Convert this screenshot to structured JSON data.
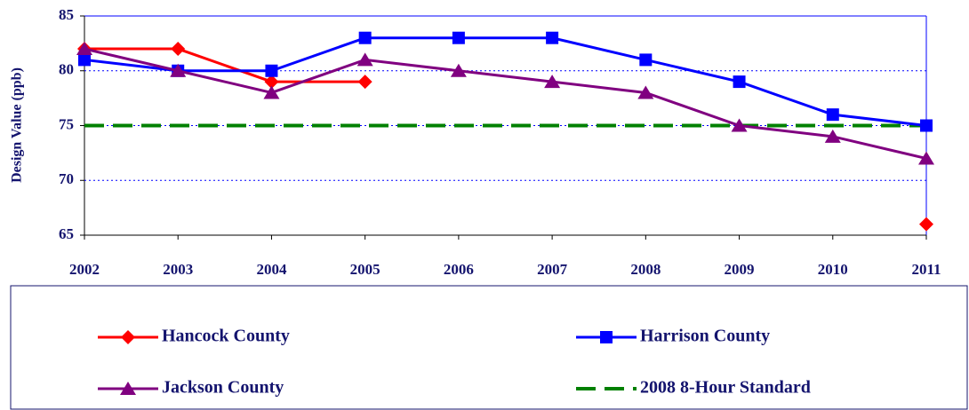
{
  "chart_data": {
    "type": "line",
    "y_label": "Design Value (ppb)",
    "categories": [
      "2002",
      "2003",
      "2004",
      "2005",
      "2006",
      "2007",
      "2008",
      "2009",
      "2010",
      "2011"
    ],
    "series": [
      {
        "name": "Hancock County",
        "color": "#ff0000",
        "marker": "diamond",
        "values": [
          82,
          82,
          79,
          79,
          null,
          null,
          null,
          null,
          null,
          66
        ]
      },
      {
        "name": "Harrison County",
        "color": "#0000ff",
        "marker": "square",
        "values": [
          81,
          80,
          80,
          83,
          83,
          83,
          81,
          79,
          76,
          75
        ]
      },
      {
        "name": "Jackson County",
        "color": "#800080",
        "marker": "triangle",
        "values": [
          82,
          80,
          78,
          81,
          80,
          79,
          78,
          75,
          74,
          72
        ]
      },
      {
        "name": "2008 8-Hour Standard",
        "color": "#008000",
        "marker": "none",
        "dashed": true,
        "values": [
          75,
          75,
          75,
          75,
          75,
          75,
          75,
          75,
          75,
          75
        ]
      }
    ],
    "ylim": [
      65,
      85
    ],
    "yticks": [
      65,
      70,
      75,
      80,
      85
    ],
    "grid": true,
    "legend": "bottom"
  }
}
